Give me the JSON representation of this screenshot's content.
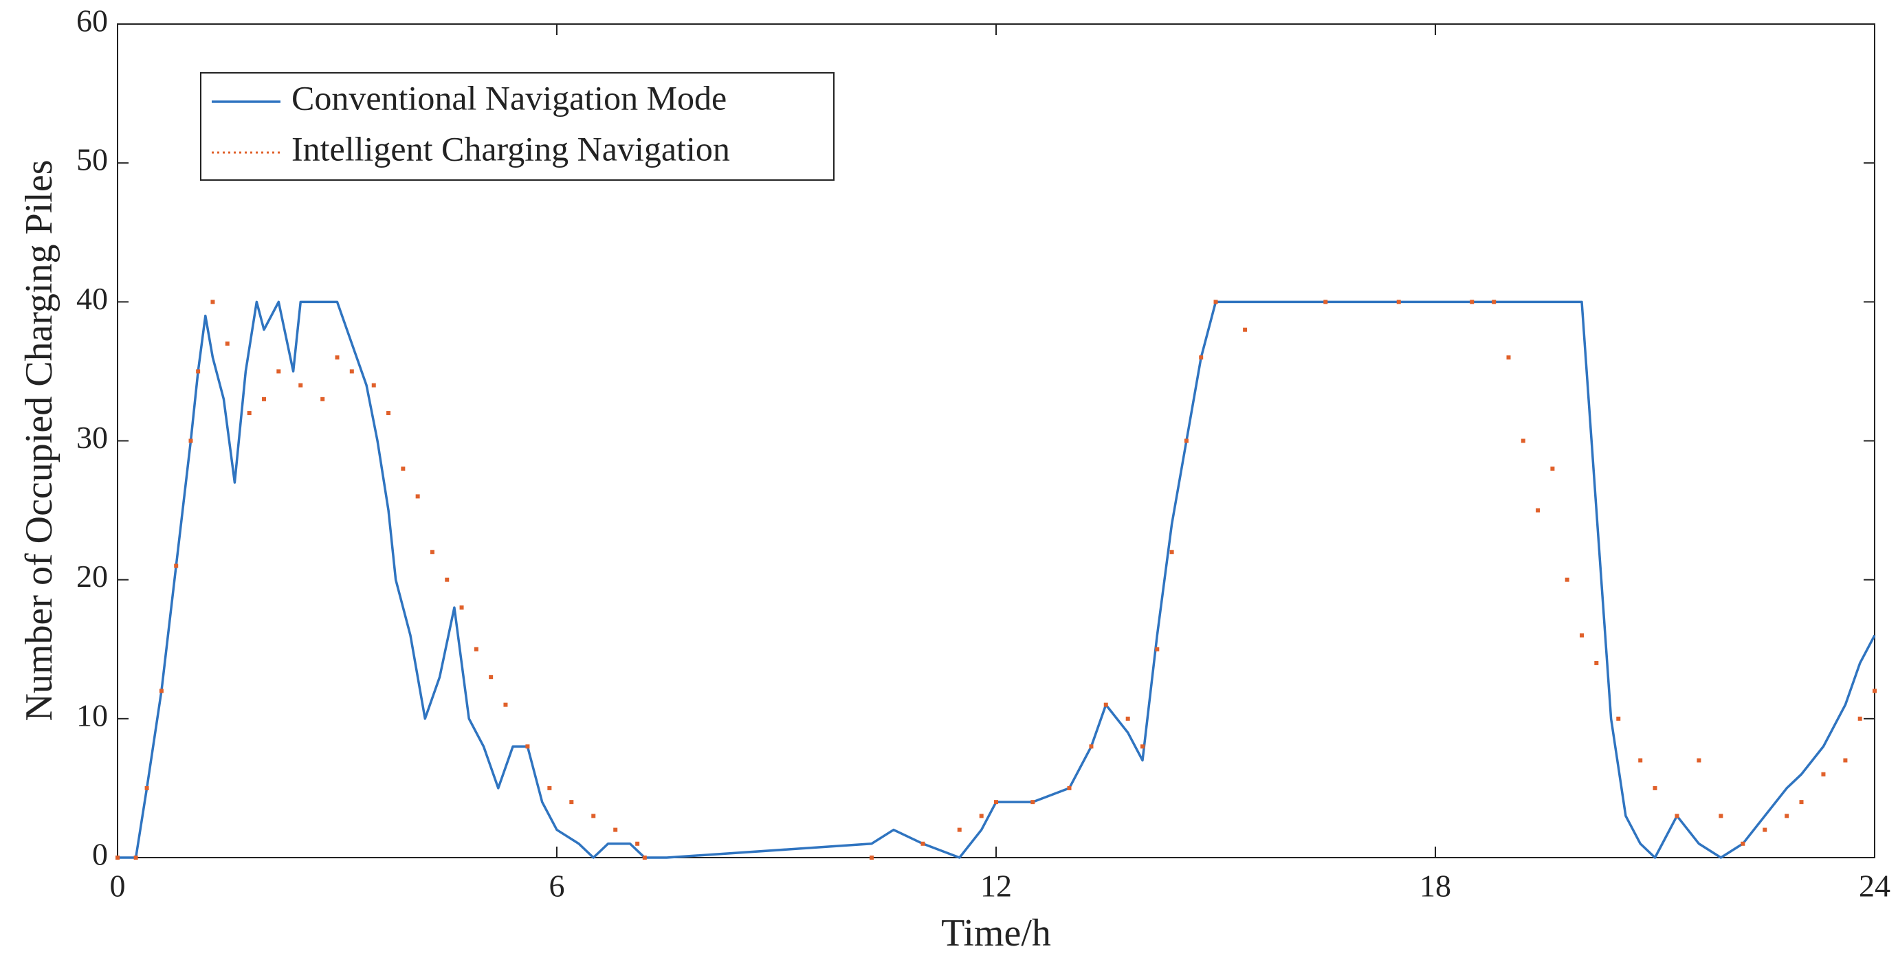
{
  "chart_data": {
    "type": "line",
    "xlabel": "Time/h",
    "ylabel": "Number of Occupied Charging Piles",
    "xlim": [
      0,
      24
    ],
    "xticks": [
      0,
      6,
      12,
      18,
      24
    ],
    "ylim": [
      0,
      60
    ],
    "yticks": [
      0,
      10,
      20,
      30,
      40,
      50,
      60
    ],
    "grid": false,
    "legend": "upper left",
    "series": [
      {
        "name": "Conventional Navigation Mode",
        "color": "#2f74c0",
        "style": "solid",
        "x": [
          0,
          0.25,
          0.4,
          0.6,
          0.8,
          1.0,
          1.1,
          1.2,
          1.3,
          1.45,
          1.6,
          1.75,
          1.9,
          2.0,
          2.2,
          2.4,
          2.5,
          2.8,
          3.0,
          3.2,
          3.4,
          3.55,
          3.7,
          3.8,
          4.0,
          4.2,
          4.4,
          4.6,
          4.7,
          4.8,
          5.0,
          5.2,
          5.4,
          5.6,
          5.8,
          6.0,
          6.3,
          6.5,
          6.7,
          7.0,
          7.2,
          7.5,
          10.3,
          10.6,
          11.0,
          11.5,
          11.8,
          12.0,
          12.5,
          13.0,
          13.3,
          13.5,
          13.8,
          14.0,
          14.2,
          14.4,
          14.6,
          14.8,
          15.0,
          15.4,
          16,
          17,
          18,
          19,
          19.5,
          20.0,
          20.2,
          20.4,
          20.6,
          20.8,
          21.0,
          21.3,
          21.6,
          21.9,
          22.2,
          22.5,
          22.8,
          23.0,
          23.3,
          23.6,
          23.8,
          24.0
        ],
        "values": [
          0,
          0,
          5,
          12,
          21,
          30,
          35,
          39,
          36,
          33,
          27,
          35,
          40,
          38,
          40,
          35,
          40,
          40,
          40,
          37,
          34,
          30,
          25,
          20,
          16,
          10,
          13,
          18,
          14,
          10,
          8,
          5,
          8,
          8,
          4,
          2,
          1,
          0,
          1,
          1,
          0,
          0,
          1,
          2,
          1,
          0,
          2,
          4,
          4,
          5,
          8,
          11,
          9,
          7,
          16,
          24,
          30,
          36,
          40,
          40,
          40,
          40,
          40,
          40,
          40,
          40,
          25,
          10,
          3,
          1,
          0,
          3,
          1,
          0,
          1,
          3,
          5,
          6,
          8,
          11,
          14,
          16
        ]
      },
      {
        "name": "Intelligent Charging Navigation",
        "color": "#e0602a",
        "style": "dotted",
        "x": [
          0,
          0.25,
          0.4,
          0.6,
          0.8,
          1.0,
          1.1,
          1.3,
          1.5,
          1.8,
          2.0,
          2.2,
          2.5,
          2.8,
          3.0,
          3.2,
          3.5,
          3.7,
          3.9,
          4.1,
          4.3,
          4.5,
          4.7,
          4.9,
          5.1,
          5.3,
          5.6,
          5.9,
          6.2,
          6.5,
          6.8,
          7.1,
          7.2,
          10.3,
          11.0,
          11.5,
          11.8,
          12.0,
          12.5,
          13.0,
          13.3,
          13.5,
          13.8,
          14.0,
          14.2,
          14.4,
          14.6,
          14.8,
          15.0,
          15.4,
          16.5,
          17.5,
          18.5,
          18.8,
          19.0,
          19.2,
          19.4,
          19.6,
          19.8,
          20.0,
          20.2,
          20.5,
          20.8,
          21.0,
          21.3,
          21.6,
          21.9,
          22.2,
          22.5,
          22.8,
          23.0,
          23.3,
          23.6,
          23.8,
          24.0
        ],
        "values": [
          0,
          0,
          5,
          12,
          21,
          30,
          35,
          40,
          37,
          32,
          33,
          35,
          34,
          33,
          36,
          35,
          34,
          32,
          28,
          26,
          22,
          20,
          18,
          15,
          13,
          11,
          8,
          5,
          4,
          3,
          2,
          1,
          0,
          0,
          1,
          2,
          3,
          4,
          4,
          5,
          8,
          11,
          10,
          8,
          15,
          22,
          30,
          36,
          40,
          38,
          40,
          40,
          40,
          40,
          36,
          30,
          25,
          28,
          20,
          16,
          14,
          10,
          7,
          5,
          3,
          7,
          3,
          1,
          2,
          3,
          4,
          6,
          7,
          10,
          12
        ]
      }
    ]
  }
}
